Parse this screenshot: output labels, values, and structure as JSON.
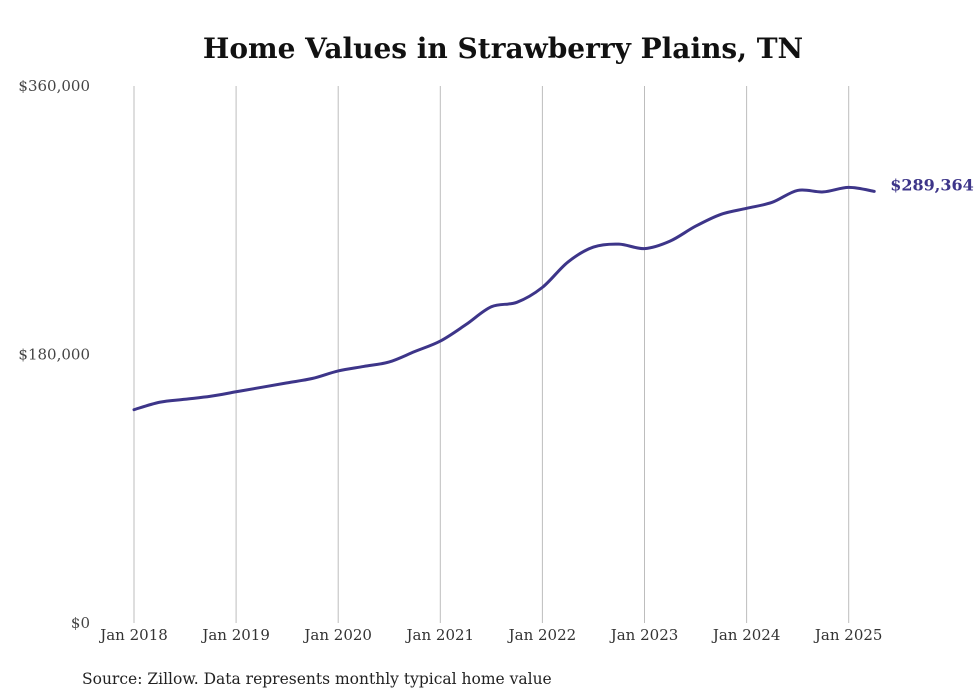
{
  "chart_data": {
    "type": "line",
    "title": "Home Values in Strawberry Plains, TN",
    "xlabel": "",
    "ylabel": "",
    "ylim": [
      0,
      360000
    ],
    "xlim": [
      "2018-01",
      "2025-04"
    ],
    "yticks": [
      {
        "value": 0,
        "label": "$0"
      },
      {
        "value": 180000,
        "label": "$180,000"
      },
      {
        "value": 360000,
        "label": "$360,000"
      }
    ],
    "xticks": [
      {
        "value": "2018-01",
        "label": "Jan 2018"
      },
      {
        "value": "2019-01",
        "label": "Jan 2019"
      },
      {
        "value": "2020-01",
        "label": "Jan 2020"
      },
      {
        "value": "2021-01",
        "label": "Jan 2021"
      },
      {
        "value": "2022-01",
        "label": "Jan 2022"
      },
      {
        "value": "2023-01",
        "label": "Jan 2023"
      },
      {
        "value": "2024-01",
        "label": "Jan 2024"
      },
      {
        "value": "2025-01",
        "label": "Jan 2025"
      }
    ],
    "grid": {
      "vertical": true,
      "horizontal": false
    },
    "line_color": "#3d3589",
    "end_label": "$289,364",
    "series": [
      {
        "x": [
          "2018-01",
          "2018-04",
          "2018-07",
          "2018-10",
          "2019-01",
          "2019-04",
          "2019-07",
          "2019-10",
          "2020-01",
          "2020-04",
          "2020-07",
          "2020-10",
          "2021-01",
          "2021-04",
          "2021-07",
          "2021-10",
          "2022-01",
          "2022-04",
          "2022-07",
          "2022-10",
          "2023-01",
          "2023-04",
          "2023-07",
          "2023-10",
          "2024-01",
          "2024-04",
          "2024-07",
          "2024-10",
          "2025-01",
          "2025-04"
        ],
        "y": [
          143000,
          148000,
          150000,
          152000,
          155000,
          158000,
          161000,
          164000,
          169000,
          172000,
          175000,
          182000,
          189000,
          200000,
          212000,
          215000,
          225000,
          242000,
          252000,
          254000,
          251000,
          256000,
          266000,
          274000,
          278000,
          282000,
          290000,
          289000,
          292000,
          289364
        ]
      }
    ]
  },
  "footer": {
    "source": "Source: Zillow. Data represents monthly typical home value"
  }
}
